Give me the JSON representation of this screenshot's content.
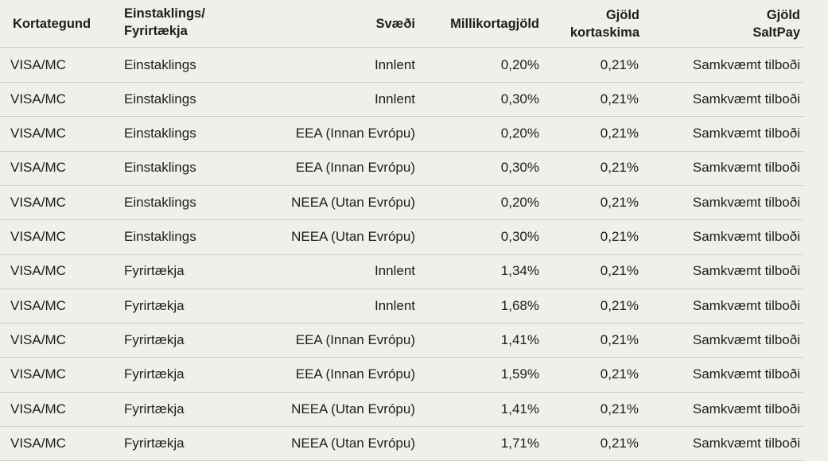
{
  "table": {
    "headers": {
      "type": "Kortategund",
      "customer": "Einstaklings/ Fyrirtækja",
      "region": "Svæði",
      "interchange": "Millikortagjöld",
      "scheme": "Gjöld kortaskima",
      "saltpay": "Gjöld SaltPay"
    },
    "rows": [
      {
        "type": "VISA/MC",
        "customer": "Einstaklings",
        "region": "Innlent",
        "interchange": "0,20%",
        "scheme": "0,21%",
        "saltpay": "Samkvæmt tilboði"
      },
      {
        "type": "VISA/MC",
        "customer": "Einstaklings",
        "region": "Innlent",
        "interchange": "0,30%",
        "scheme": "0,21%",
        "saltpay": "Samkvæmt tilboði"
      },
      {
        "type": "VISA/MC",
        "customer": "Einstaklings",
        "region": "EEA (Innan Evrópu)",
        "interchange": "0,20%",
        "scheme": "0,21%",
        "saltpay": "Samkvæmt tilboði"
      },
      {
        "type": "VISA/MC",
        "customer": "Einstaklings",
        "region": "EEA (Innan Evrópu)",
        "interchange": "0,30%",
        "scheme": "0,21%",
        "saltpay": "Samkvæmt tilboði"
      },
      {
        "type": "VISA/MC",
        "customer": "Einstaklings",
        "region": "NEEA (Utan Evrópu)",
        "interchange": "0,20%",
        "scheme": "0,21%",
        "saltpay": "Samkvæmt tilboði"
      },
      {
        "type": "VISA/MC",
        "customer": "Einstaklings",
        "region": "NEEA (Utan Evrópu)",
        "interchange": "0,30%",
        "scheme": "0,21%",
        "saltpay": "Samkvæmt tilboði"
      },
      {
        "type": "VISA/MC",
        "customer": "Fyrirtækja",
        "region": "Innlent",
        "interchange": "1,34%",
        "scheme": "0,21%",
        "saltpay": "Samkvæmt tilboði"
      },
      {
        "type": "VISA/MC",
        "customer": "Fyrirtækja",
        "region": "Innlent",
        "interchange": "1,68%",
        "scheme": "0,21%",
        "saltpay": "Samkvæmt tilboði"
      },
      {
        "type": "VISA/MC",
        "customer": "Fyrirtækja",
        "region": "EEA (Innan Evrópu)",
        "interchange": "1,41%",
        "scheme": "0,21%",
        "saltpay": "Samkvæmt tilboði"
      },
      {
        "type": "VISA/MC",
        "customer": "Fyrirtækja",
        "region": "EEA (Innan Evrópu)",
        "interchange": "1,59%",
        "scheme": "0,21%",
        "saltpay": "Samkvæmt tilboði"
      },
      {
        "type": "VISA/MC",
        "customer": "Fyrirtækja",
        "region": "NEEA (Utan Evrópu)",
        "interchange": "1,41%",
        "scheme": "0,21%",
        "saltpay": "Samkvæmt tilboði"
      },
      {
        "type": "VISA/MC",
        "customer": "Fyrirtækja",
        "region": "NEEA (Utan Evrópu)",
        "interchange": "1,71%",
        "scheme": "0,21%",
        "saltpay": "Samkvæmt tilboði"
      }
    ]
  }
}
